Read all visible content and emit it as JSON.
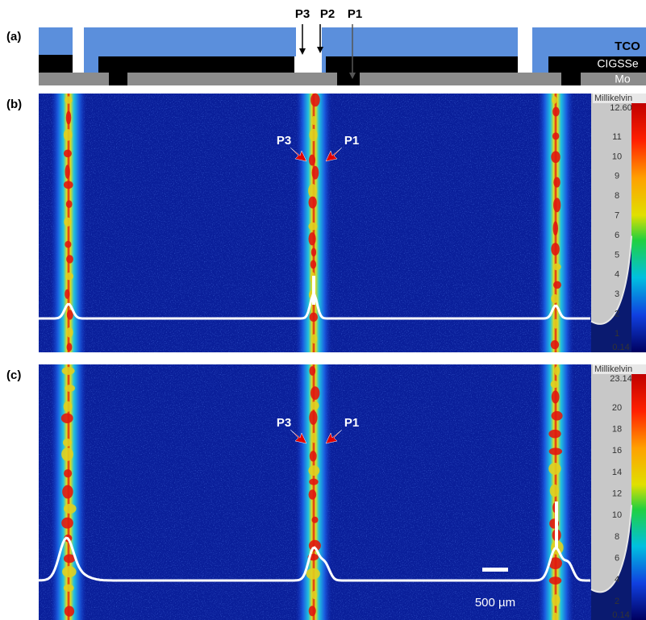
{
  "panel_a": {
    "label": "(a)",
    "scribes": [
      "P3",
      "P2",
      "P1"
    ],
    "layers": [
      "TCO",
      "CIGSSe",
      "Mo"
    ]
  },
  "panel_b": {
    "label": "(b)",
    "markers": [
      "P3",
      "P1"
    ],
    "colorbar": {
      "unit": "Millikelvin",
      "max": "12.60",
      "ticks": [
        "11",
        "10",
        "9",
        "8",
        "7",
        "6",
        "5",
        "4",
        "3",
        "2",
        "1"
      ],
      "min": "0.14"
    }
  },
  "panel_c": {
    "label": "(c)",
    "markers": [
      "P3",
      "P1"
    ],
    "colorbar": {
      "unit": "Millikelvin",
      "max": "23.14",
      "ticks": [
        "20",
        "18",
        "16",
        "14",
        "12",
        "10",
        "8",
        "6",
        "4",
        "2"
      ],
      "min": "0.14"
    },
    "scale_bar": "500 µm"
  }
}
